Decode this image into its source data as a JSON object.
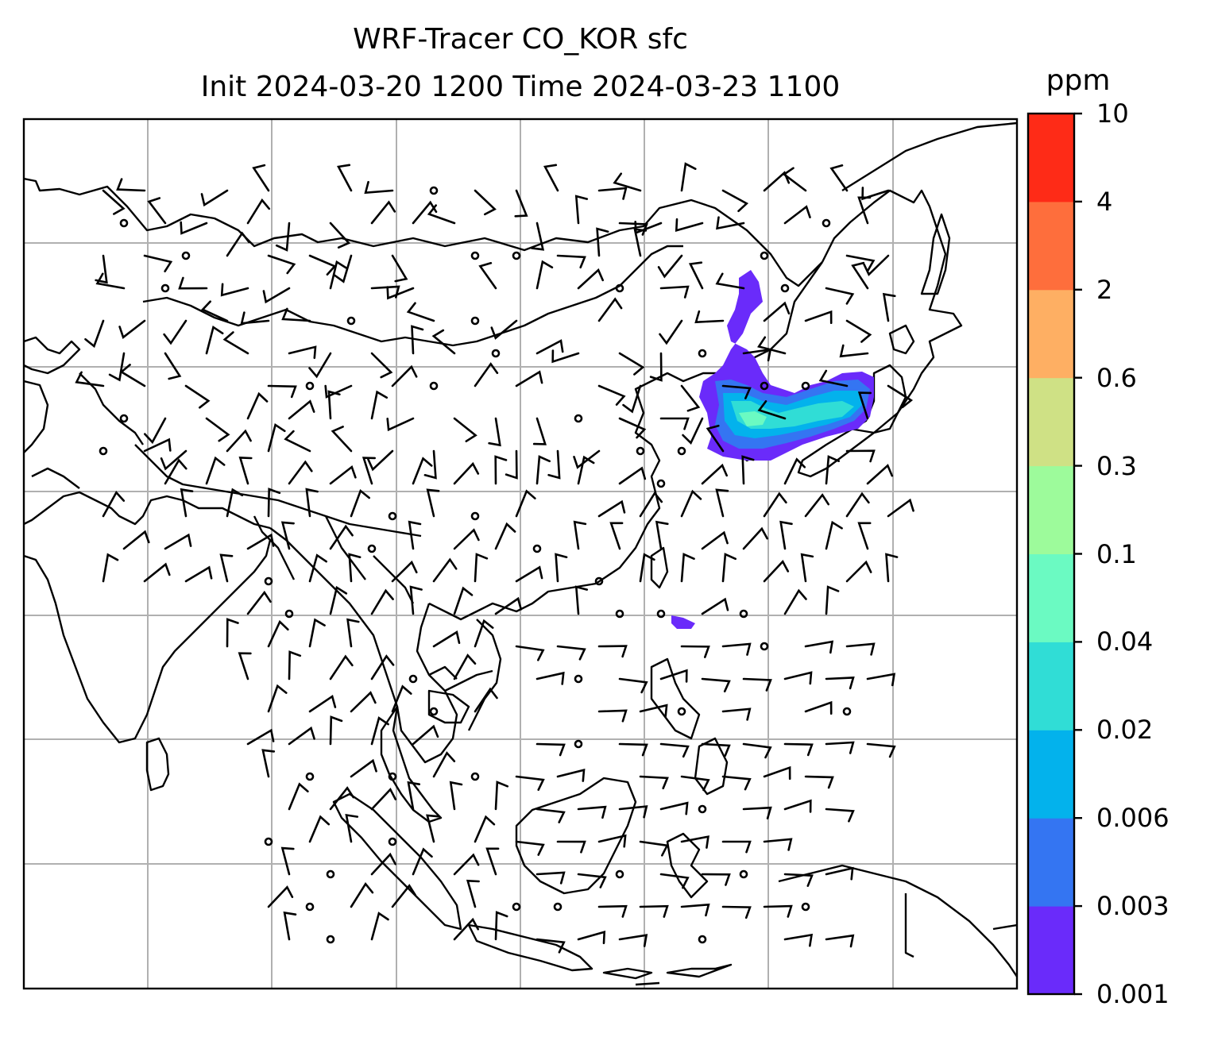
{
  "title": {
    "line1": "WRF-Tracer CO_KOR sfc",
    "line2": "Init 2024-03-20 1200 Time 2024-03-23 1100"
  },
  "colorbar": {
    "unit": "ppm",
    "levels": [
      "0.001",
      "0.003",
      "0.006",
      "0.02",
      "0.04",
      "0.1",
      "0.3",
      "0.6",
      "2",
      "4",
      "10"
    ],
    "colors": [
      "#6a2bfa",
      "#3475f2",
      "#03b2ec",
      "#30ddd6",
      "#6bfac2",
      "#9dfb9b",
      "#cfe185",
      "#feaf63",
      "#fe6e3c",
      "#fe2b17"
    ]
  },
  "map": {
    "field": "CO_KOR surface tracer concentration",
    "overlay": "wind barbs",
    "gridlines": "on",
    "border_color": "#000000",
    "grid_color": "#b0b0b0"
  }
}
